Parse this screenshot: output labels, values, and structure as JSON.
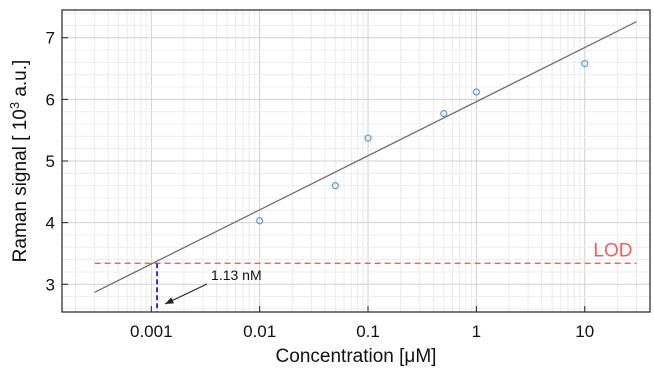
{
  "chart_data": {
    "type": "scatter",
    "title": "",
    "xlabel": "Concentration [μM]",
    "ylabel_parts": {
      "before": "Raman signal [ 10",
      "sup": "3",
      "after": " a.u.]"
    },
    "x_scale": "log",
    "xlim": [
      0.00015,
      40
    ],
    "ylim": [
      2.55,
      7.45
    ],
    "x_ticks": [
      0.001,
      0.01,
      0.1,
      1,
      10
    ],
    "x_tick_labels": [
      "0.001",
      "0.01",
      "0.1",
      "1",
      "10"
    ],
    "y_ticks": [
      3,
      4,
      5,
      6,
      7
    ],
    "y_tick_labels": [
      "3",
      "4",
      "5",
      "6",
      "7"
    ],
    "grid": true,
    "series": [
      {
        "kind": "scatter",
        "marker": "open-circle",
        "color": "#5b9bd5",
        "points": [
          {
            "x": 0.01,
            "y": 4.03
          },
          {
            "x": 0.05,
            "y": 4.6
          },
          {
            "x": 0.1,
            "y": 5.37
          },
          {
            "x": 0.5,
            "y": 5.77
          },
          {
            "x": 1,
            "y": 6.12
          },
          {
            "x": 10,
            "y": 6.58
          }
        ]
      },
      {
        "kind": "fit-line",
        "color": "#6e6e6e",
        "points": [
          {
            "x": 0.0003,
            "y": 2.87
          },
          {
            "x": 30,
            "y": 7.26
          }
        ]
      }
    ],
    "lod": {
      "label": "LOD",
      "y": 3.34,
      "x_range": [
        0.0003,
        30
      ],
      "color": "#ff5a5a"
    },
    "annotation": {
      "text": "1.13 nM",
      "x": 0.00113,
      "marker_color": "#1f1fd6"
    }
  }
}
